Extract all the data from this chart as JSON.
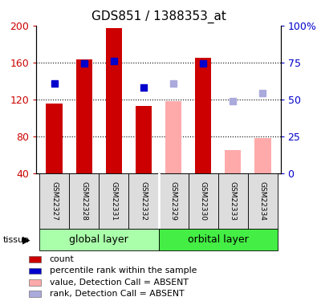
{
  "title": "GDS851 / 1388353_at",
  "samples": [
    "GSM22327",
    "GSM22328",
    "GSM22331",
    "GSM22332",
    "GSM22329",
    "GSM22330",
    "GSM22333",
    "GSM22334"
  ],
  "bar_values": [
    115,
    163,
    197,
    113,
    null,
    165,
    null,
    null
  ],
  "bar_absent_values": [
    null,
    null,
    null,
    null,
    118,
    null,
    65,
    78
  ],
  "rank_values": [
    137,
    159,
    162,
    133,
    null,
    159,
    null,
    null
  ],
  "rank_absent_values": [
    null,
    null,
    null,
    null,
    137,
    null,
    118,
    127
  ],
  "bar_color": "#cc0000",
  "bar_absent_color": "#ffaaaa",
  "rank_color": "#0000cc",
  "rank_absent_color": "#aaaadd",
  "ylim_left": [
    40,
    200
  ],
  "ylim_right": [
    0,
    100
  ],
  "yticks_left": [
    40,
    80,
    120,
    160,
    200
  ],
  "ytick_labels_left": [
    "40",
    "80",
    "120",
    "160",
    "200"
  ],
  "ytick_labels_right": [
    "0",
    "25",
    "50",
    "75",
    "100%"
  ],
  "grid_values": [
    80,
    120,
    160
  ],
  "left_tick_color": "#cc0000",
  "right_tick_color": "#0000cc",
  "tissue_label": "tissue",
  "group_labels": [
    "global layer",
    "orbital layer"
  ],
  "group_colors": [
    "#aaffaa",
    "#44ee44"
  ],
  "group_ranges": [
    [
      0,
      3
    ],
    [
      4,
      7
    ]
  ],
  "sample_box_color": "#dddddd",
  "legend_items": [
    {
      "label": "count",
      "color": "#cc0000"
    },
    {
      "label": "percentile rank within the sample",
      "color": "#0000cc"
    },
    {
      "label": "value, Detection Call = ABSENT",
      "color": "#ffaaaa"
    },
    {
      "label": "rank, Detection Call = ABSENT",
      "color": "#aaaadd"
    }
  ]
}
